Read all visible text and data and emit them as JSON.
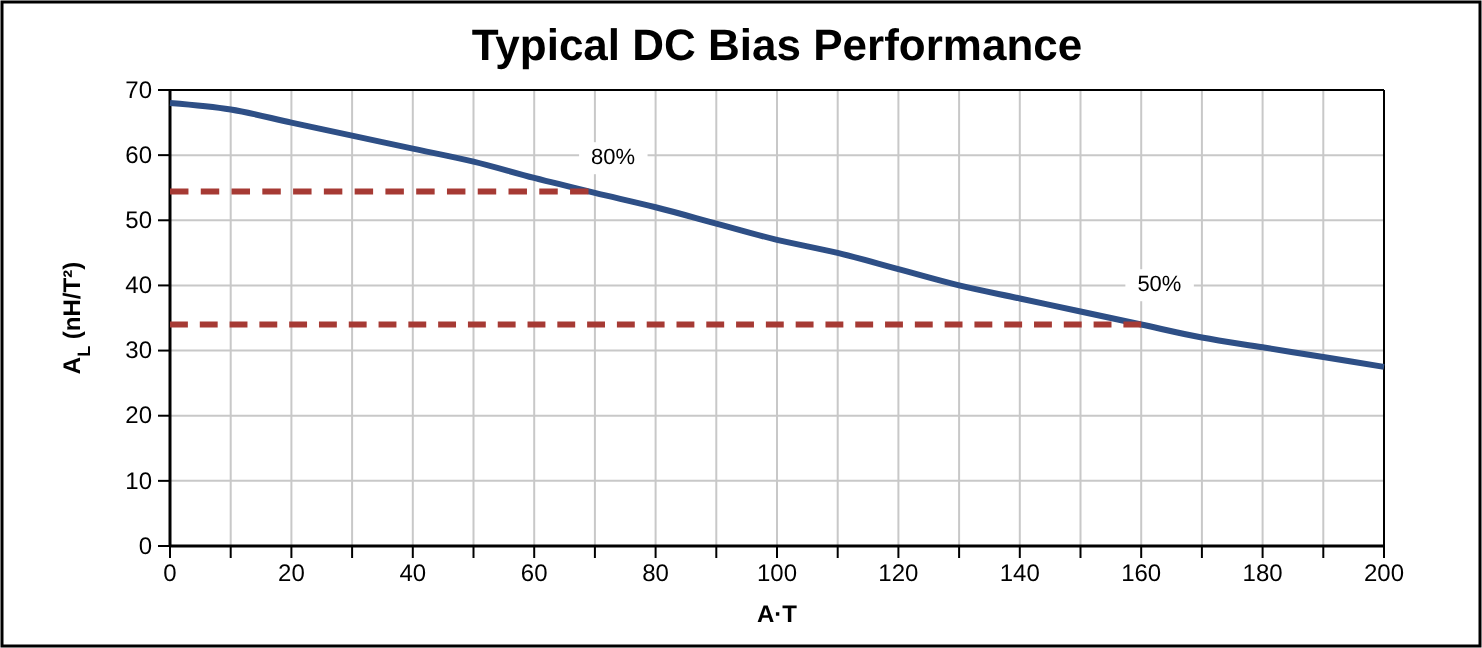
{
  "chart_data": {
    "type": "line",
    "title": "Typical DC Bias Performance",
    "xlabel": "A·T",
    "ylabel": "A$_{L}$ (nH/T²)",
    "x": [
      0,
      10,
      20,
      30,
      40,
      50,
      60,
      70,
      80,
      90,
      100,
      110,
      120,
      130,
      140,
      150,
      160,
      170,
      180,
      190,
      200
    ],
    "series": [
      {
        "color": "#2e4f86",
        "values": [
          68,
          67,
          65,
          63,
          61,
          59,
          56.5,
          54.2,
          52,
          49.5,
          47,
          45,
          42.5,
          40,
          38,
          36,
          34,
          32,
          30.5,
          29,
          27.5
        ]
      },
      {
        "color": "#a63a34",
        "line_style": "dashed",
        "x": [
          0,
          69
        ],
        "values": [
          54.4,
          54.4
        ]
      },
      {
        "color": "#a63a34",
        "line_style": "dashed",
        "x": [
          0,
          160
        ],
        "values": [
          34,
          34
        ]
      }
    ],
    "annotations": [
      {
        "text": "80%",
        "x": 73,
        "y": 59.5
      },
      {
        "text": "50%",
        "x": 163,
        "y": 40
      }
    ],
    "xlim": [
      0,
      200
    ],
    "ylim": [
      0,
      70
    ],
    "xticks": [
      0,
      {
        "value": 10,
        "label": null
      },
      20,
      {
        "value": 30,
        "label": null
      },
      40,
      {
        "value": 50,
        "label": null
      },
      60,
      {
        "value": 70,
        "label": null
      },
      80,
      {
        "value": 90,
        "label": null
      },
      100,
      {
        "value": 110,
        "label": null
      },
      120,
      {
        "value": 130,
        "label": null
      },
      140,
      {
        "value": 150,
        "label": null
      },
      160,
      {
        "value": 170,
        "label": null
      },
      180,
      {
        "value": 190,
        "label": null
      },
      200
    ],
    "yticks": [
      0,
      10,
      20,
      30,
      40,
      50,
      60,
      70
    ],
    "grid": true,
    "marker": "none",
    "line_style": "solid"
  }
}
